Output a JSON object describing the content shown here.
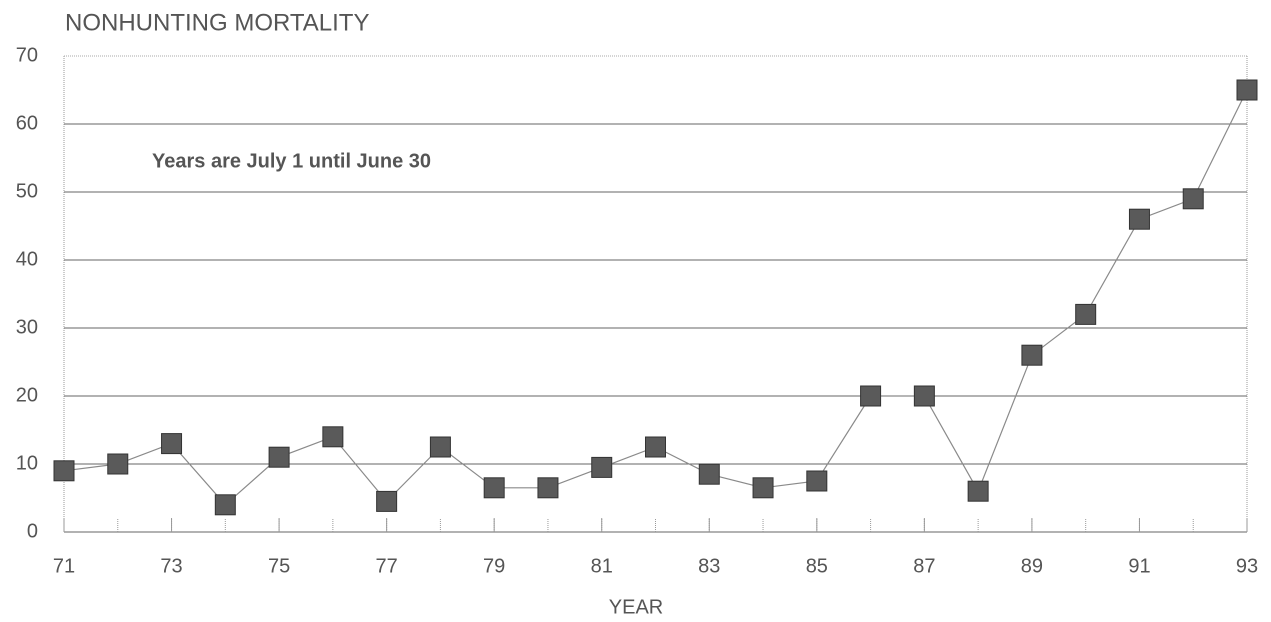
{
  "chart_data": {
    "type": "line",
    "title": "NONHUNTING MORTALITY",
    "annotation": "Years are July 1 until June 30",
    "x_label": "YEAR",
    "x": [
      71,
      72,
      73,
      74,
      75,
      76,
      77,
      78,
      79,
      80,
      81,
      82,
      83,
      84,
      85,
      86,
      87,
      88,
      89,
      90,
      91,
      92,
      93
    ],
    "values": [
      9,
      10,
      13,
      4,
      11,
      14,
      4.5,
      12.5,
      6.5,
      6.5,
      9.5,
      12.5,
      8.5,
      6.5,
      7.5,
      20,
      20,
      6,
      26,
      32,
      46,
      49,
      65
    ],
    "color": "#8a8a8a",
    "marker_color": "#5a5a5a",
    "xlim": [
      71,
      93
    ],
    "xticks": [
      71,
      73,
      75,
      77,
      79,
      81,
      83,
      85,
      87,
      89,
      91,
      93
    ],
    "ylim": [
      0,
      70
    ],
    "yticks": [
      0,
      10,
      20,
      30,
      40,
      50,
      60,
      70
    ],
    "grid": true
  }
}
